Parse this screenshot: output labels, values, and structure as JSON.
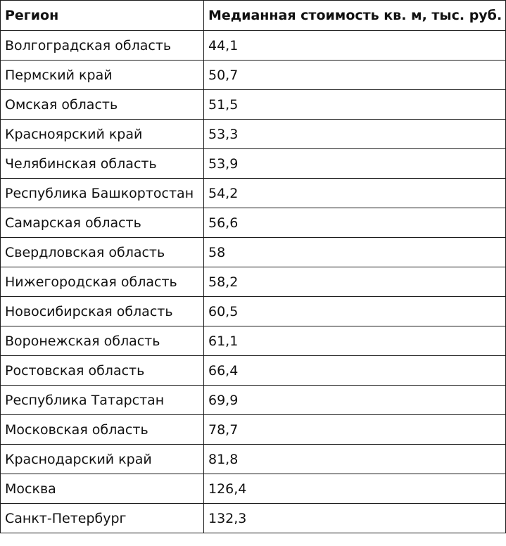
{
  "table": {
    "headers": [
      "Регион",
      "Медианная стоимость кв. м, тыс. руб."
    ],
    "rows": [
      [
        "Волгоградская область",
        "44,1"
      ],
      [
        "Пермский край",
        "50,7"
      ],
      [
        "Омская область",
        "51,5"
      ],
      [
        "Красноярский край",
        "53,3"
      ],
      [
        "Челябинская область",
        "53,9"
      ],
      [
        "Республика Башкортостан",
        "54,2"
      ],
      [
        "Самарская область",
        "56,6"
      ],
      [
        "Свердловская область",
        "58"
      ],
      [
        "Нижегородская область",
        "58,2"
      ],
      [
        "Новосибирская область",
        "60,5"
      ],
      [
        "Воронежская область",
        "61,1"
      ],
      [
        "Ростовская область",
        "66,4"
      ],
      [
        "Республика Татарстан",
        "69,9"
      ],
      [
        "Московская область",
        "78,7"
      ],
      [
        "Краснодарский край",
        "81,8"
      ],
      [
        "Москва",
        "126,4"
      ],
      [
        "Санкт-Петербург",
        "132,3"
      ]
    ]
  }
}
